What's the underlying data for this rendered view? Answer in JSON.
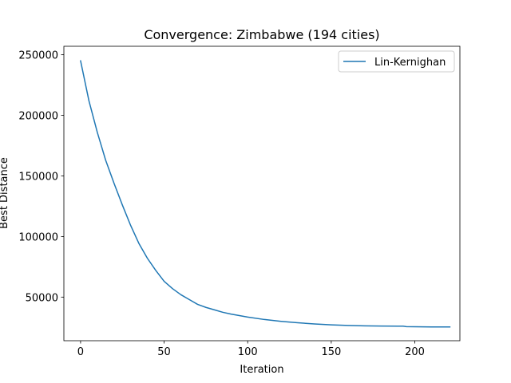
{
  "chart_data": {
    "type": "line",
    "title": "Convergence: Zimbabwe (194 cities)",
    "xlabel": "Iteration",
    "ylabel": "Best Distance",
    "xlim": [
      -10,
      227
    ],
    "ylim": [
      14000,
      257000
    ],
    "xticks": [
      0,
      50,
      100,
      150,
      200
    ],
    "yticks": [
      50000,
      100000,
      150000,
      200000,
      250000
    ],
    "grid": false,
    "legend_position": "top-right",
    "series": [
      {
        "name": "Lin-Kernighan",
        "color": "#1f77b4",
        "x": [
          0,
          5,
          10,
          15,
          20,
          25,
          30,
          35,
          40,
          45,
          50,
          55,
          60,
          65,
          70,
          75,
          80,
          85,
          90,
          100,
          110,
          120,
          130,
          140,
          150,
          160,
          170,
          180,
          190,
          193,
          195,
          200,
          210,
          221
        ],
        "y": [
          245000,
          212000,
          186000,
          163000,
          144000,
          126000,
          109000,
          94000,
          82000,
          72000,
          63000,
          57000,
          52000,
          48000,
          44000,
          41500,
          39500,
          37500,
          36000,
          33500,
          31500,
          30000,
          28800,
          27800,
          27100,
          26600,
          26300,
          26100,
          26000,
          26000,
          25600,
          25500,
          25400,
          25400
        ]
      }
    ]
  }
}
